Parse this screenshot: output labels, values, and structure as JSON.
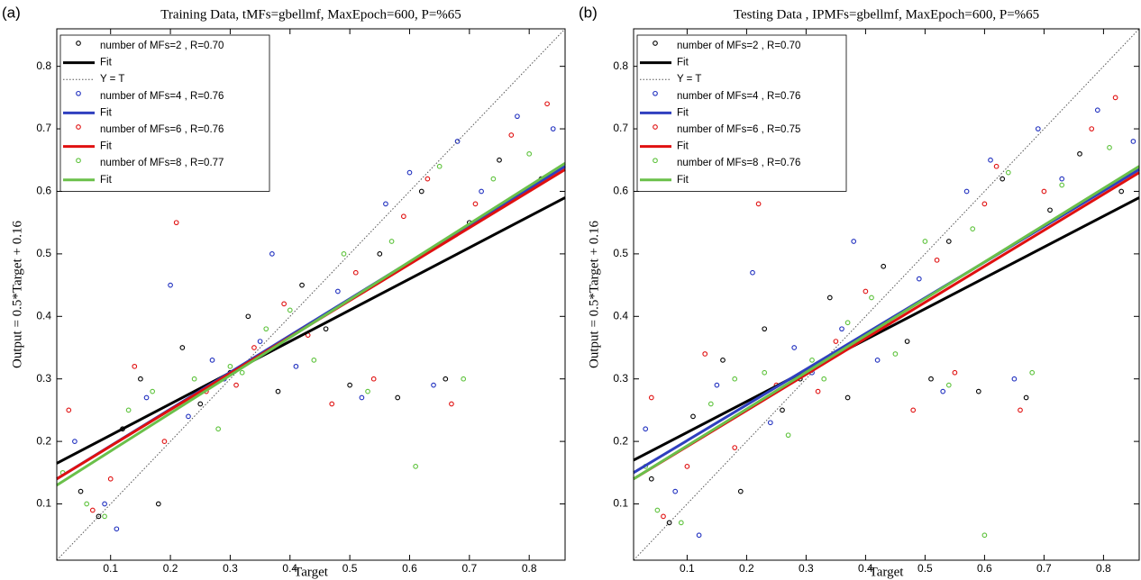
{
  "chart_data": [
    {
      "type": "scatter",
      "panel": "(a)",
      "title": "Training Data, tMFs=gbellmf, MaxEpoch=600, P=%65",
      "x_label": "Target",
      "y_label": "Output  = 0.5*Target + 0.16",
      "xlim": [
        0.01,
        0.86
      ],
      "ylim": [
        0.01,
        0.86
      ],
      "xticks": [
        0.1,
        0.2,
        0.3,
        0.4,
        0.5,
        0.6,
        0.7,
        0.8
      ],
      "yticks": [
        0.1,
        0.2,
        0.3,
        0.4,
        0.5,
        0.6,
        0.7,
        0.8
      ],
      "legend": "upper left",
      "series": [
        {
          "name": "number of MFs=2 , R=0.70",
          "mode": "markers",
          "color": "#000000",
          "x": [
            0.05,
            0.08,
            0.12,
            0.15,
            0.18,
            0.22,
            0.25,
            0.3,
            0.33,
            0.38,
            0.42,
            0.46,
            0.5,
            0.55,
            0.58,
            0.62,
            0.66,
            0.7,
            0.75,
            0.82
          ],
          "values": [
            0.12,
            0.08,
            0.22,
            0.3,
            0.1,
            0.35,
            0.26,
            0.31,
            0.4,
            0.28,
            0.45,
            0.38,
            0.29,
            0.5,
            0.27,
            0.6,
            0.3,
            0.55,
            0.65,
            0.62
          ]
        },
        {
          "name": "Fit",
          "mode": "lines",
          "color": "#000000",
          "x": [
            0.01,
            0.86
          ],
          "values": [
            0.165,
            0.59
          ]
        },
        {
          "name": "Y = T",
          "mode": "lines",
          "dash": "dotted",
          "color": "#555555",
          "x": [
            0.01,
            0.86
          ],
          "values": [
            0.01,
            0.86
          ]
        },
        {
          "name": "number of MFs=4 , R=0.76",
          "mode": "markers",
          "color": "#1f2fbf",
          "x": [
            0.04,
            0.09,
            0.11,
            0.16,
            0.2,
            0.23,
            0.27,
            0.29,
            0.35,
            0.37,
            0.41,
            0.48,
            0.52,
            0.56,
            0.6,
            0.64,
            0.68,
            0.72,
            0.78,
            0.84
          ],
          "values": [
            0.2,
            0.1,
            0.06,
            0.27,
            0.45,
            0.24,
            0.33,
            0.3,
            0.36,
            0.5,
            0.32,
            0.44,
            0.27,
            0.58,
            0.63,
            0.29,
            0.68,
            0.6,
            0.72,
            0.7
          ]
        },
        {
          "name": "Fit",
          "mode": "lines",
          "color": "#2f3fbf",
          "x": [
            0.01,
            0.86
          ],
          "values": [
            0.14,
            0.64
          ]
        },
        {
          "name": "number of MFs=6 , R=0.76",
          "mode": "markers",
          "color": "#e01010",
          "x": [
            0.03,
            0.07,
            0.1,
            0.14,
            0.19,
            0.21,
            0.26,
            0.31,
            0.34,
            0.39,
            0.43,
            0.47,
            0.51,
            0.54,
            0.59,
            0.63,
            0.67,
            0.71,
            0.77,
            0.83
          ],
          "values": [
            0.25,
            0.09,
            0.14,
            0.32,
            0.2,
            0.55,
            0.28,
            0.29,
            0.35,
            0.42,
            0.37,
            0.26,
            0.47,
            0.3,
            0.56,
            0.62,
            0.26,
            0.58,
            0.69,
            0.74
          ]
        },
        {
          "name": "Fit",
          "mode": "lines",
          "color": "#e01010",
          "x": [
            0.01,
            0.86
          ],
          "values": [
            0.14,
            0.635
          ]
        },
        {
          "name": "number of MFs=8 , R=0.77",
          "mode": "markers",
          "color": "#5cc23a",
          "x": [
            0.02,
            0.06,
            0.09,
            0.13,
            0.17,
            0.24,
            0.28,
            0.3,
            0.32,
            0.36,
            0.4,
            0.44,
            0.49,
            0.53,
            0.57,
            0.61,
            0.65,
            0.69,
            0.74,
            0.8
          ],
          "values": [
            0.15,
            0.1,
            0.08,
            0.25,
            0.28,
            0.3,
            0.22,
            0.32,
            0.31,
            0.38,
            0.41,
            0.33,
            0.5,
            0.28,
            0.52,
            0.16,
            0.64,
            0.3,
            0.62,
            0.66
          ]
        },
        {
          "name": "Fit",
          "mode": "lines",
          "color": "#6ac04a",
          "x": [
            0.01,
            0.86
          ],
          "values": [
            0.13,
            0.645
          ]
        }
      ]
    },
    {
      "type": "scatter",
      "panel": "(b)",
      "title": "Testing Data , IPMFs=gbellmf, MaxEpoch=600, P=%65",
      "x_label": "Target",
      "y_label": "Output  = 0.5*Target + 0.16",
      "xlim": [
        0.01,
        0.86
      ],
      "ylim": [
        0.01,
        0.86
      ],
      "xticks": [
        0.1,
        0.2,
        0.3,
        0.4,
        0.5,
        0.6,
        0.7,
        0.8
      ],
      "yticks": [
        0.1,
        0.2,
        0.3,
        0.4,
        0.5,
        0.6,
        0.7,
        0.8
      ],
      "legend": "upper left",
      "series": [
        {
          "name": "number of MFs=2 , R=0.70",
          "mode": "markers",
          "color": "#000000",
          "x": [
            0.04,
            0.07,
            0.11,
            0.16,
            0.19,
            0.23,
            0.26,
            0.29,
            0.34,
            0.37,
            0.43,
            0.47,
            0.51,
            0.54,
            0.59,
            0.63,
            0.67,
            0.71,
            0.76,
            0.83
          ],
          "values": [
            0.14,
            0.07,
            0.24,
            0.33,
            0.12,
            0.38,
            0.25,
            0.3,
            0.43,
            0.27,
            0.48,
            0.36,
            0.3,
            0.52,
            0.28,
            0.62,
            0.27,
            0.57,
            0.66,
            0.6
          ]
        },
        {
          "name": "Fit",
          "mode": "lines",
          "color": "#000000",
          "x": [
            0.01,
            0.86
          ],
          "values": [
            0.17,
            0.59
          ]
        },
        {
          "name": "Y = T",
          "mode": "lines",
          "dash": "dotted",
          "color": "#555555",
          "x": [
            0.01,
            0.86
          ],
          "values": [
            0.01,
            0.86
          ]
        },
        {
          "name": "number of MFs=4 , R=0.76",
          "mode": "markers",
          "color": "#1f2fbf",
          "x": [
            0.03,
            0.08,
            0.12,
            0.15,
            0.21,
            0.24,
            0.28,
            0.31,
            0.36,
            0.38,
            0.42,
            0.49,
            0.53,
            0.57,
            0.61,
            0.65,
            0.69,
            0.73,
            0.79,
            0.85
          ],
          "values": [
            0.22,
            0.12,
            0.05,
            0.29,
            0.47,
            0.23,
            0.35,
            0.31,
            0.38,
            0.52,
            0.33,
            0.46,
            0.28,
            0.6,
            0.65,
            0.3,
            0.7,
            0.62,
            0.73,
            0.68
          ]
        },
        {
          "name": "Fit",
          "mode": "lines",
          "color": "#2f3fbf",
          "x": [
            0.01,
            0.86
          ],
          "values": [
            0.15,
            0.635
          ]
        },
        {
          "name": "number of MFs=6 , R=0.75",
          "mode": "markers",
          "color": "#e01010",
          "x": [
            0.04,
            0.06,
            0.1,
            0.13,
            0.18,
            0.22,
            0.25,
            0.32,
            0.35,
            0.4,
            0.44,
            0.48,
            0.52,
            0.55,
            0.6,
            0.62,
            0.66,
            0.7,
            0.78,
            0.82
          ],
          "values": [
            0.27,
            0.08,
            0.16,
            0.34,
            0.19,
            0.58,
            0.29,
            0.28,
            0.36,
            0.44,
            0.39,
            0.25,
            0.49,
            0.31,
            0.58,
            0.64,
            0.25,
            0.6,
            0.7,
            0.75
          ]
        },
        {
          "name": "Fit",
          "mode": "lines",
          "color": "#e01010",
          "x": [
            0.01,
            0.86
          ],
          "values": [
            0.14,
            0.63
          ]
        },
        {
          "name": "number of MFs=8 , R=0.76",
          "mode": "markers",
          "color": "#5cc23a",
          "x": [
            0.03,
            0.05,
            0.09,
            0.14,
            0.18,
            0.23,
            0.27,
            0.31,
            0.33,
            0.37,
            0.41,
            0.45,
            0.5,
            0.54,
            0.58,
            0.6,
            0.64,
            0.68,
            0.73,
            0.81
          ],
          "values": [
            0.16,
            0.09,
            0.07,
            0.26,
            0.3,
            0.31,
            0.21,
            0.33,
            0.3,
            0.39,
            0.43,
            0.34,
            0.52,
            0.29,
            0.54,
            0.05,
            0.63,
            0.31,
            0.61,
            0.67
          ]
        },
        {
          "name": "Fit",
          "mode": "lines",
          "color": "#6ac04a",
          "x": [
            0.01,
            0.86
          ],
          "values": [
            0.14,
            0.64
          ]
        }
      ]
    }
  ]
}
